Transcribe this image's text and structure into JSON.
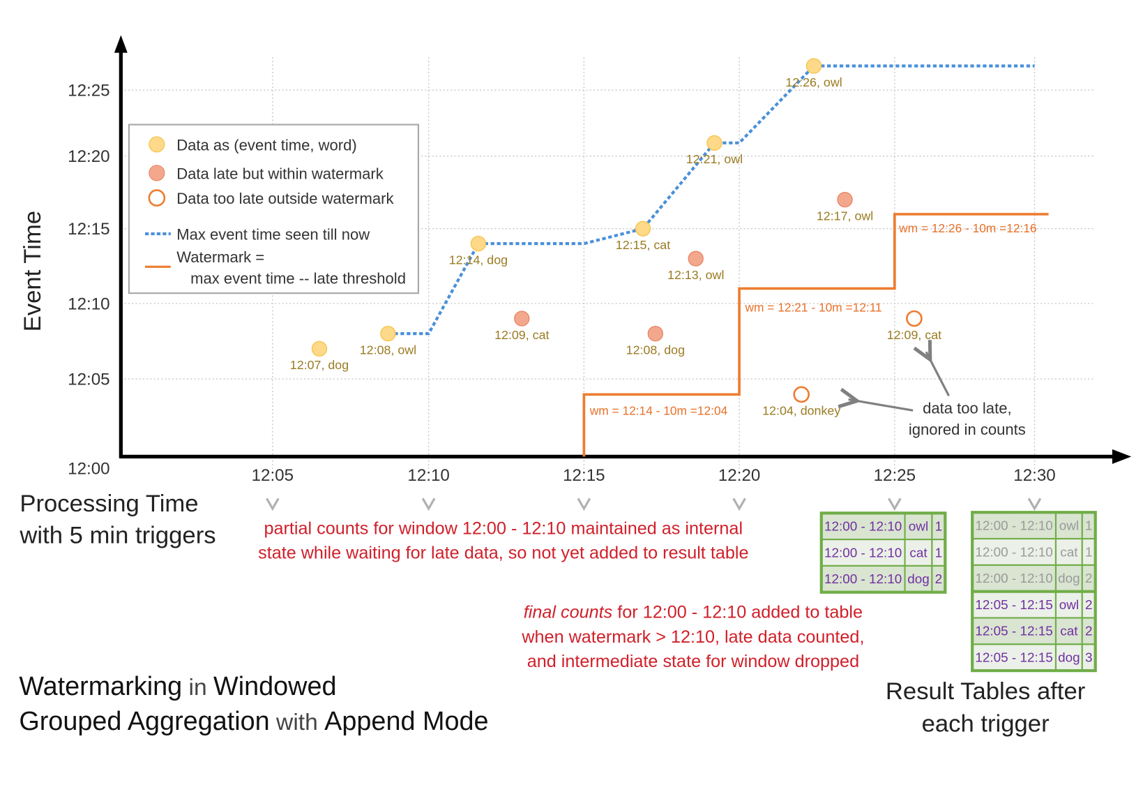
{
  "chart_data": {
    "type": "scatter",
    "xlabel_lines": [
      "Processing Time",
      "with 5 min triggers"
    ],
    "ylabel": "Event Time",
    "x_ticks": [
      "12:05",
      "12:10",
      "12:15",
      "12:20",
      "12:25",
      "12:30"
    ],
    "y_ticks": [
      "12:00",
      "12:05",
      "12:10",
      "12:15",
      "12:20",
      "12:25"
    ],
    "grid": true,
    "points": [
      {
        "label": "12:07, dog",
        "processing_min": 6.5,
        "event_min": 7,
        "kind": "on-time"
      },
      {
        "label": "12:08, owl",
        "processing_min": 8.7,
        "event_min": 8,
        "kind": "on-time"
      },
      {
        "label": "12:14, dog",
        "processing_min": 11.6,
        "event_min": 14,
        "kind": "on-time"
      },
      {
        "label": "12:09, cat",
        "processing_min": 13.0,
        "event_min": 9,
        "kind": "late"
      },
      {
        "label": "12:15, cat",
        "processing_min": 16.9,
        "event_min": 15,
        "kind": "on-time"
      },
      {
        "label": "12:08, dog",
        "processing_min": 17.3,
        "event_min": 8,
        "kind": "late"
      },
      {
        "label": "12:13, owl",
        "processing_min": 18.6,
        "event_min": 13,
        "kind": "late"
      },
      {
        "label": "12:21, owl",
        "processing_min": 19.2,
        "event_min": 21,
        "kind": "on-time"
      },
      {
        "label": "12:04, donkey",
        "processing_min": 22.0,
        "event_min": 4,
        "kind": "too-late"
      },
      {
        "label": "12:26, owl",
        "processing_min": 22.4,
        "event_min": 26,
        "kind": "on-time"
      },
      {
        "label": "12:17, owl",
        "processing_min": 23.4,
        "event_min": 17,
        "kind": "late"
      },
      {
        "label": "12:09, cat",
        "processing_min": 25.7,
        "event_min": 9,
        "kind": "too-late"
      }
    ],
    "max_event_time_line": [
      [
        8.7,
        8
      ],
      [
        10,
        8
      ],
      [
        11.6,
        14
      ],
      [
        15,
        14
      ],
      [
        16.9,
        15
      ],
      [
        19.2,
        21
      ],
      [
        20,
        21
      ],
      [
        22.4,
        26
      ],
      [
        30,
        26
      ]
    ],
    "watermark_line": [
      [
        15,
        0
      ],
      [
        15,
        4
      ],
      [
        20,
        4
      ],
      [
        20,
        11
      ],
      [
        25,
        11
      ],
      [
        25,
        16
      ],
      [
        30.5,
        16
      ]
    ],
    "watermark_labels": [
      "wm = 12:14 - 10m =12:04",
      "wm = 12:21 - 10m =12:11",
      "wm = 12:26 - 10m =12:16"
    ],
    "colors": {
      "on_time": "#fdd989",
      "late": "#f3a88e",
      "too_late": "#ed7d31",
      "max_line": "#4a90d9",
      "watermark": "#ed7d31"
    }
  },
  "legend": {
    "items": [
      "Data as (event time, word)",
      "Data late but within watermark",
      "Data too late outside watermark",
      "Max event time seen till now",
      "Watermark =",
      "max event time -- late threshold"
    ]
  },
  "annotations": {
    "too_late": [
      "data too late,",
      "ignored in counts"
    ],
    "partial": [
      "partial counts for window 12:00 - 12:10 maintained as internal",
      "state while waiting for late data, so not yet added  to result table"
    ],
    "final_emph": "final counts",
    "final": [
      " for 12:00 - 12:10 added to table",
      "when watermark > 12:10, late data counted,",
      "and intermediate state for window dropped"
    ]
  },
  "result_tables": {
    "caption": [
      "Result Tables after",
      "each trigger"
    ],
    "table_1225": [
      [
        "12:00 - 12:10",
        "owl",
        "1"
      ],
      [
        "12:00 - 12:10",
        "cat",
        "1"
      ],
      [
        "12:00 - 12:10",
        "dog",
        "2"
      ]
    ],
    "table_1230": [
      [
        "12:00 - 12:10",
        "owl",
        "1"
      ],
      [
        "12:00 - 12:10",
        "cat",
        "1"
      ],
      [
        "12:00 - 12:10",
        "dog",
        "2"
      ],
      [
        "12:05 - 12:15",
        "owl",
        "2"
      ],
      [
        "12:05 - 12:15",
        "cat",
        "2"
      ],
      [
        "12:05 - 12:15",
        "dog",
        "3"
      ]
    ]
  },
  "title": {
    "line1": [
      [
        "Watermarking",
        "b"
      ],
      [
        " in ",
        "l"
      ],
      [
        "Windowed",
        "b"
      ]
    ],
    "line2": [
      [
        "Grouped Aggregation",
        "b"
      ],
      [
        " with ",
        "l"
      ],
      [
        "Append Mode",
        "b"
      ]
    ]
  }
}
